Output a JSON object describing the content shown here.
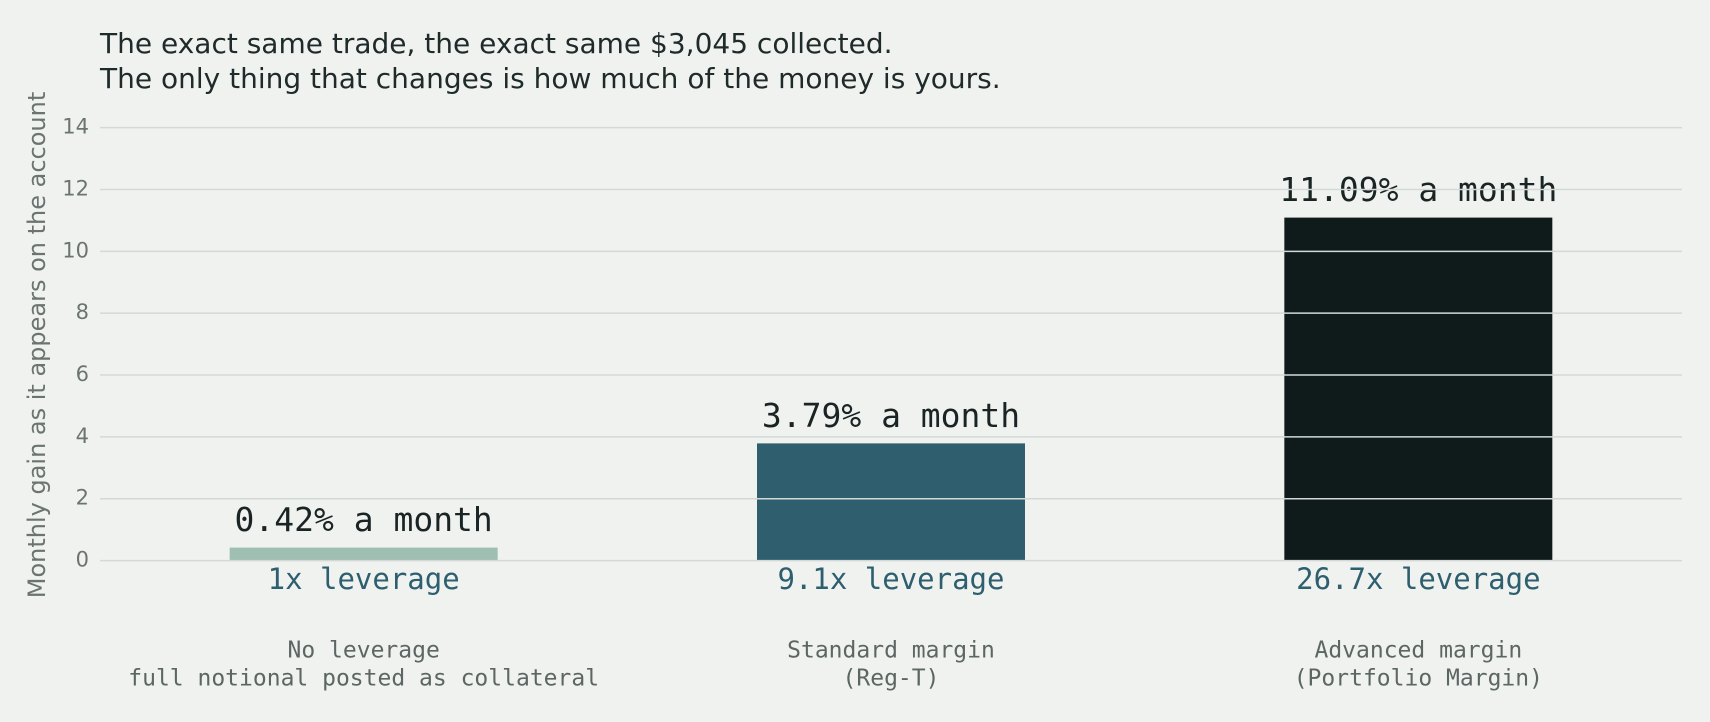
{
  "chart_data": {
    "type": "bar",
    "title": [
      "The exact same trade, the exact same $3,045 collected.",
      "The only thing that changes is how much of the money is yours."
    ],
    "y_label": "Monthly gain as it appears on the account",
    "categories": [
      [
        "No leverage",
        "full notional posted as collateral"
      ],
      [
        "Standard margin",
        "(Reg-T)"
      ],
      [
        "Advanced margin",
        "(Portfolio Margin)"
      ]
    ],
    "leverage_labels": [
      "1x leverage",
      "9.1x leverage",
      "26.7x leverage"
    ],
    "values": [
      0.42,
      3.79,
      11.09
    ],
    "value_labels": [
      "0.42% a month",
      "3.79% a month",
      "11.09% a month"
    ],
    "colors": [
      "#9fbfb2",
      "#2f5f6e",
      "#0f1b1b"
    ],
    "ylim": [
      0,
      14
    ],
    "yticks": [
      0,
      2,
      4,
      6,
      8,
      10,
      12,
      14
    ],
    "grid": true
  }
}
